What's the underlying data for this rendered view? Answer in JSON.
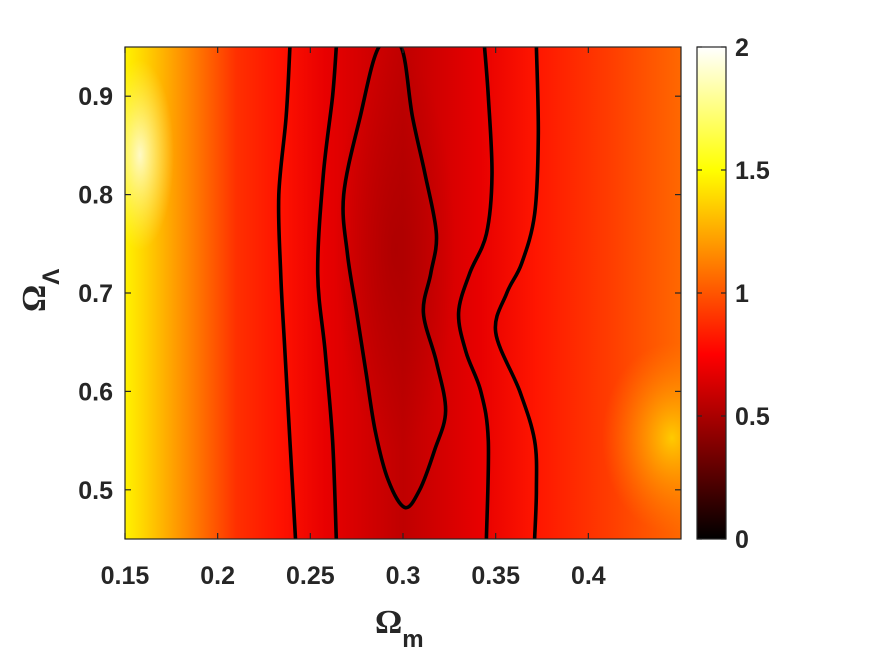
{
  "chart_data": {
    "type": "heatmap",
    "title": "",
    "xlabel_symbol": "Ω",
    "xlabel_subscript": "m",
    "ylabel_symbol": "Ω",
    "ylabel_subscript": "Λ",
    "xlim": [
      0.15,
      0.45
    ],
    "ylim": [
      0.45,
      0.95
    ],
    "xticks": [
      0.15,
      0.2,
      0.25,
      0.3,
      0.35,
      0.4
    ],
    "xtick_labels": [
      "0.15",
      "0.2",
      "0.25",
      "0.3",
      "0.35",
      "0.4"
    ],
    "yticks": [
      0.5,
      0.6,
      0.7,
      0.8,
      0.9
    ],
    "ytick_labels": [
      "0.5",
      "0.6",
      "0.7",
      "0.8",
      "0.9"
    ],
    "colormap": "hot",
    "clim": [
      0,
      2
    ],
    "colorbar_ticks": [
      0,
      0.5,
      1,
      1.5,
      2
    ],
    "colorbar_tick_labels": [
      "0",
      "0.5",
      "1",
      "1.5",
      "2"
    ],
    "minimum": {
      "x": 0.3,
      "y": 0.7,
      "value": 0.55
    },
    "contours": [
      {
        "name": "outer-left",
        "points": [
          [
            0.242,
            0.45
          ],
          [
            0.239,
            0.55
          ],
          [
            0.236,
            0.65
          ],
          [
            0.234,
            0.72
          ],
          [
            0.233,
            0.8
          ],
          [
            0.237,
            0.88
          ],
          [
            0.239,
            0.95
          ]
        ]
      },
      {
        "name": "inner-left",
        "points": [
          [
            0.264,
            0.45
          ],
          [
            0.262,
            0.55
          ],
          [
            0.258,
            0.64
          ],
          [
            0.254,
            0.72
          ],
          [
            0.257,
            0.82
          ],
          [
            0.262,
            0.9
          ],
          [
            0.264,
            0.95
          ]
        ]
      },
      {
        "name": "closed-inner",
        "closed": true,
        "points": [
          [
            0.301,
            0.482
          ],
          [
            0.309,
            0.5
          ],
          [
            0.317,
            0.54
          ],
          [
            0.323,
            0.58
          ],
          [
            0.318,
            0.63
          ],
          [
            0.311,
            0.68
          ],
          [
            0.315,
            0.72
          ],
          [
            0.318,
            0.76
          ],
          [
            0.312,
            0.82
          ],
          [
            0.305,
            0.88
          ],
          [
            0.299,
            0.95
          ],
          [
            0.287,
            0.95
          ],
          [
            0.277,
            0.88
          ],
          [
            0.268,
            0.8
          ],
          [
            0.27,
            0.74
          ],
          [
            0.275,
            0.68
          ],
          [
            0.28,
            0.62
          ],
          [
            0.285,
            0.56
          ],
          [
            0.292,
            0.51
          ]
        ]
      },
      {
        "name": "inner-right",
        "points": [
          [
            0.345,
            0.45
          ],
          [
            0.346,
            0.55
          ],
          [
            0.342,
            0.6
          ],
          [
            0.334,
            0.64
          ],
          [
            0.33,
            0.68
          ],
          [
            0.336,
            0.72
          ],
          [
            0.345,
            0.76
          ],
          [
            0.348,
            0.82
          ],
          [
            0.346,
            0.9
          ],
          [
            0.344,
            0.95
          ]
        ]
      },
      {
        "name": "outer-right",
        "points": [
          [
            0.371,
            0.45
          ],
          [
            0.372,
            0.5
          ],
          [
            0.371,
            0.55
          ],
          [
            0.363,
            0.6
          ],
          [
            0.35,
            0.66
          ],
          [
            0.356,
            0.7
          ],
          [
            0.364,
            0.73
          ],
          [
            0.371,
            0.78
          ],
          [
            0.373,
            0.86
          ],
          [
            0.372,
            0.95
          ]
        ]
      }
    ]
  }
}
